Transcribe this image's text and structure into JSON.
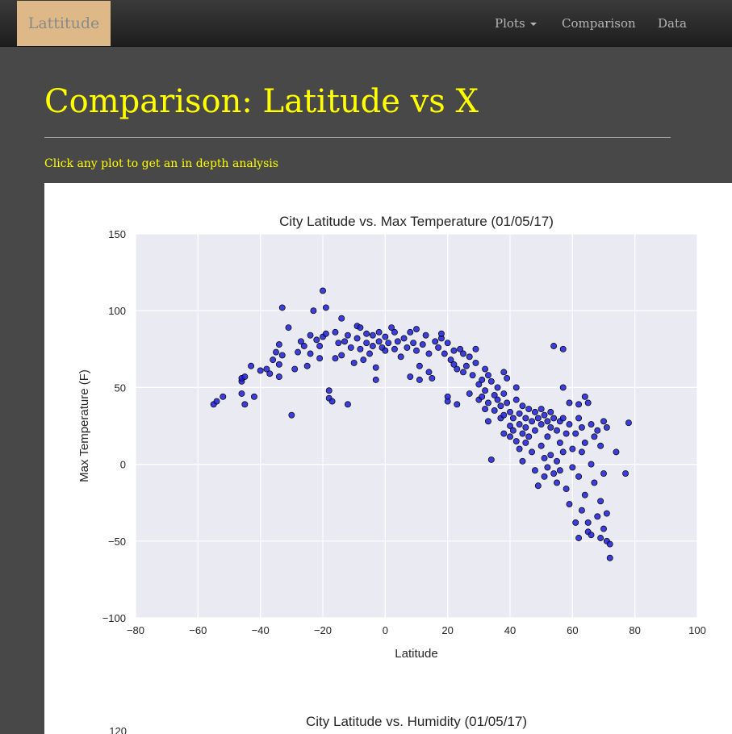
{
  "navbar": {
    "brand": "Lattitude",
    "items": [
      {
        "label": "Plots",
        "has_caret": true
      },
      {
        "label": "Comparison",
        "has_caret": false
      },
      {
        "label": "Data",
        "has_caret": false
      }
    ]
  },
  "page": {
    "title": "Comparison: Latitude vs X",
    "hint": "Click any plot to get an in depth analysis"
  },
  "colors": {
    "brand_bg": "#deb887",
    "accent_text": "#ffff00",
    "page_bg": "#484848",
    "plot_bg": "#eaeaf2",
    "point_fill": "#1f1fd8"
  },
  "chart_data": [
    {
      "type": "scatter",
      "title": "City Latitude vs. Max Temperature (01/05/17)",
      "xlabel": "Latitude",
      "ylabel": "Max Temperature (F)",
      "xlim": [
        -80,
        100
      ],
      "ylim": [
        -100,
        150
      ],
      "xticks": [
        -80,
        -60,
        -40,
        -20,
        0,
        20,
        40,
        60,
        80,
        100
      ],
      "yticks": [
        -100,
        -50,
        0,
        50,
        100,
        150
      ],
      "xtick_labels": [
        "−80",
        "−60",
        "−40",
        "−20",
        "0",
        "20",
        "40",
        "60",
        "80",
        "100"
      ],
      "ytick_labels": [
        "−100",
        "−50",
        "0",
        "50",
        "100",
        "150"
      ],
      "grid": true,
      "points": [
        [
          -55,
          39
        ],
        [
          -54,
          41
        ],
        [
          -52,
          44
        ],
        [
          -46,
          54
        ],
        [
          -46,
          56
        ],
        [
          -45,
          57
        ],
        [
          -46,
          46
        ],
        [
          -45,
          39
        ],
        [
          -43,
          64
        ],
        [
          -42,
          44
        ],
        [
          -40,
          61
        ],
        [
          -38,
          62
        ],
        [
          -37,
          59
        ],
        [
          -36,
          68
        ],
        [
          -35,
          73
        ],
        [
          -34,
          78
        ],
        [
          -34,
          65
        ],
        [
          -34,
          57
        ],
        [
          -33,
          71
        ],
        [
          -31,
          89
        ],
        [
          -33,
          102
        ],
        [
          -30,
          32
        ],
        [
          -29,
          62
        ],
        [
          -28,
          73
        ],
        [
          -27,
          80
        ],
        [
          -26,
          77
        ],
        [
          -25,
          64
        ],
        [
          -24,
          84
        ],
        [
          -24,
          72
        ],
        [
          -23,
          100
        ],
        [
          -22,
          81
        ],
        [
          -21,
          77
        ],
        [
          -21,
          69
        ],
        [
          -20,
          83
        ],
        [
          -20,
          113
        ],
        [
          -19,
          102
        ],
        [
          -19,
          85
        ],
        [
          -18,
          48
        ],
        [
          -18,
          43
        ],
        [
          -17,
          41
        ],
        [
          -16,
          86
        ],
        [
          -16,
          69
        ],
        [
          -15,
          79
        ],
        [
          -14,
          95
        ],
        [
          -14,
          71
        ],
        [
          -13,
          80
        ],
        [
          -12,
          84
        ],
        [
          -12,
          39
        ],
        [
          -11,
          76
        ],
        [
          -10,
          66
        ],
        [
          -9,
          90
        ],
        [
          -9,
          82
        ],
        [
          -8,
          89
        ],
        [
          -8,
          75
        ],
        [
          -7,
          68
        ],
        [
          -6,
          85
        ],
        [
          -6,
          79
        ],
        [
          -5,
          72
        ],
        [
          -4,
          84
        ],
        [
          -4,
          77
        ],
        [
          -3,
          63
        ],
        [
          -3,
          55
        ],
        [
          -2,
          86
        ],
        [
          -2,
          80
        ],
        [
          -1,
          76
        ],
        [
          0,
          74
        ],
        [
          0,
          83
        ],
        [
          1,
          79
        ],
        [
          2,
          89
        ],
        [
          3,
          86
        ],
        [
          3,
          75
        ],
        [
          4,
          80
        ],
        [
          5,
          70
        ],
        [
          6,
          82
        ],
        [
          7,
          76
        ],
        [
          8,
          86
        ],
        [
          8,
          57
        ],
        [
          9,
          79
        ],
        [
          10,
          74
        ],
        [
          10,
          88
        ],
        [
          11,
          55
        ],
        [
          11,
          64
        ],
        [
          12,
          78
        ],
        [
          13,
          84
        ],
        [
          14,
          72
        ],
        [
          14,
          60
        ],
        [
          15,
          56
        ],
        [
          16,
          80
        ],
        [
          17,
          76
        ],
        [
          18,
          82
        ],
        [
          18,
          85
        ],
        [
          19,
          72
        ],
        [
          20,
          79
        ],
        [
          20,
          44
        ],
        [
          20,
          41
        ],
        [
          21,
          68
        ],
        [
          22,
          74
        ],
        [
          22,
          65
        ],
        [
          23,
          62
        ],
        [
          23,
          39
        ],
        [
          24,
          75
        ],
        [
          25,
          72
        ],
        [
          25,
          60
        ],
        [
          26,
          64
        ],
        [
          27,
          70
        ],
        [
          27,
          46
        ],
        [
          28,
          58
        ],
        [
          29,
          75
        ],
        [
          29,
          66
        ],
        [
          30,
          52
        ],
        [
          30,
          42
        ],
        [
          31,
          55
        ],
        [
          31,
          44
        ],
        [
          32,
          62
        ],
        [
          32,
          48
        ],
        [
          32,
          36
        ],
        [
          33,
          58
        ],
        [
          33,
          40
        ],
        [
          33,
          28
        ],
        [
          34,
          54
        ],
        [
          34,
          3
        ],
        [
          35,
          45
        ],
        [
          35,
          35
        ],
        [
          36,
          50
        ],
        [
          36,
          42
        ],
        [
          37,
          38
        ],
        [
          37,
          30
        ],
        [
          38,
          60
        ],
        [
          38,
          46
        ],
        [
          38,
          32
        ],
        [
          38,
          20
        ],
        [
          39,
          56
        ],
        [
          39,
          40
        ],
        [
          40,
          34
        ],
        [
          40,
          25
        ],
        [
          40,
          18
        ],
        [
          41,
          30
        ],
        [
          41,
          22
        ],
        [
          42,
          50
        ],
        [
          42,
          42
        ],
        [
          42,
          15
        ],
        [
          43,
          33
        ],
        [
          43,
          26
        ],
        [
          43,
          10
        ],
        [
          44,
          38
        ],
        [
          44,
          20
        ],
        [
          44,
          2
        ],
        [
          45,
          30
        ],
        [
          45,
          24
        ],
        [
          45,
          14
        ],
        [
          46,
          36
        ],
        [
          46,
          18
        ],
        [
          47,
          28
        ],
        [
          47,
          8
        ],
        [
          48,
          34
        ],
        [
          48,
          22
        ],
        [
          48,
          -4
        ],
        [
          49,
          30
        ],
        [
          49,
          -14
        ],
        [
          50,
          36
        ],
        [
          50,
          26
        ],
        [
          50,
          12
        ],
        [
          51,
          32
        ],
        [
          51,
          4
        ],
        [
          51,
          -8
        ],
        [
          52,
          28
        ],
        [
          52,
          18
        ],
        [
          52,
          -2
        ],
        [
          53,
          34
        ],
        [
          53,
          24
        ],
        [
          53,
          6
        ],
        [
          54,
          77
        ],
        [
          54,
          30
        ],
        [
          54,
          -6
        ],
        [
          55,
          22
        ],
        [
          55,
          2
        ],
        [
          55,
          -12
        ],
        [
          56,
          28
        ],
        [
          56,
          14
        ],
        [
          56,
          -4
        ],
        [
          57,
          75
        ],
        [
          57,
          50
        ],
        [
          57,
          30
        ],
        [
          57,
          8
        ],
        [
          58,
          20
        ],
        [
          58,
          -16
        ],
        [
          59,
          40
        ],
        [
          59,
          26
        ],
        [
          59,
          -26
        ],
        [
          60,
          10
        ],
        [
          60,
          -2
        ],
        [
          61,
          20
        ],
        [
          61,
          -38
        ],
        [
          62,
          39
        ],
        [
          62,
          30
        ],
        [
          62,
          -8
        ],
        [
          62,
          -48
        ],
        [
          63,
          24
        ],
        [
          63,
          8
        ],
        [
          63,
          -30
        ],
        [
          64,
          44
        ],
        [
          64,
          14
        ],
        [
          64,
          -20
        ],
        [
          65,
          40
        ],
        [
          65,
          -38
        ],
        [
          65,
          -44
        ],
        [
          66,
          26
        ],
        [
          66,
          0
        ],
        [
          66,
          -46
        ],
        [
          67,
          18
        ],
        [
          67,
          -12
        ],
        [
          68,
          22
        ],
        [
          68,
          -34
        ],
        [
          69,
          12
        ],
        [
          69,
          -24
        ],
        [
          69,
          -48
        ],
        [
          70,
          28
        ],
        [
          70,
          -6
        ],
        [
          70,
          -42
        ],
        [
          71,
          24
        ],
        [
          71,
          -32
        ],
        [
          71,
          -50
        ],
        [
          72,
          -52
        ],
        [
          72,
          -61
        ],
        [
          74,
          8
        ],
        [
          77,
          -6
        ],
        [
          78,
          27
        ]
      ]
    },
    {
      "type": "scatter",
      "title": "City Latitude vs. Humidity (01/05/17)",
      "ytick_labels": [
        "120"
      ]
    }
  ]
}
